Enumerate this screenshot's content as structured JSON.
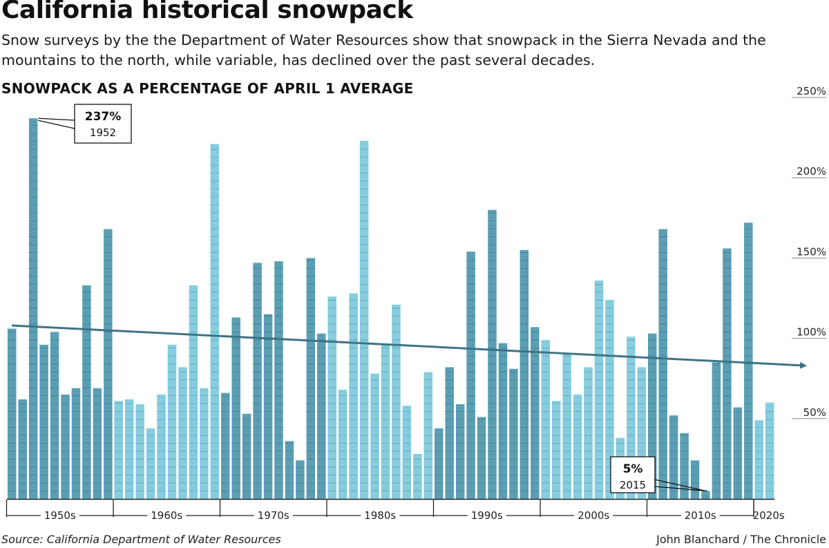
{
  "header": {
    "title": "California historical snowpack",
    "subtitle": "Snow surveys by the the Department of Water Resources show that snowpack in the Sierra Nevada and the mountains to the north, while variable, has declined over the past several decades.",
    "chart_heading": "SNOWPACK AS A PERCENTAGE OF APRIL 1 AVERAGE"
  },
  "footer": {
    "source": "Source: California Department of Water Resources",
    "credit": "John Blanchard / The Chronicle"
  },
  "colors": {
    "dark_bar": "#5b9fb5",
    "light_bar": "#86cde0",
    "trend_line": "#3e7384",
    "axis": "#222222"
  },
  "chart_data": {
    "type": "bar",
    "title": "SNOWPACK AS A PERCENTAGE OF APRIL 1 AVERAGE",
    "xlabel": "",
    "ylabel": "",
    "ylim": [
      0,
      250
    ],
    "y_ticks": [
      50,
      100,
      150,
      200,
      250
    ],
    "y_tick_labels": [
      "50%",
      "100%",
      "150%",
      "200%",
      "250%"
    ],
    "years": [
      1950,
      1951,
      1952,
      1953,
      1954,
      1955,
      1956,
      1957,
      1958,
      1959,
      1960,
      1961,
      1962,
      1963,
      1964,
      1965,
      1966,
      1967,
      1968,
      1969,
      1970,
      1971,
      1972,
      1973,
      1974,
      1975,
      1976,
      1977,
      1978,
      1979,
      1980,
      1981,
      1982,
      1983,
      1984,
      1985,
      1986,
      1987,
      1988,
      1989,
      1990,
      1991,
      1992,
      1993,
      1994,
      1995,
      1996,
      1997,
      1998,
      1999,
      2000,
      2001,
      2002,
      2003,
      2004,
      2005,
      2006,
      2007,
      2008,
      2009,
      2010,
      2011,
      2012,
      2013,
      2014,
      2015,
      2016,
      2017,
      2018,
      2019,
      2020,
      2021
    ],
    "values": [
      106,
      62,
      237,
      96,
      104,
      65,
      69,
      133,
      69,
      168,
      61,
      62,
      59,
      44,
      65,
      96,
      82,
      133,
      69,
      221,
      66,
      113,
      53,
      147,
      115,
      148,
      36,
      24,
      150,
      103,
      126,
      68,
      128,
      223,
      78,
      96,
      121,
      58,
      28,
      79,
      44,
      82,
      59,
      154,
      51,
      180,
      97,
      81,
      155,
      107,
      99,
      61,
      91,
      65,
      82,
      136,
      124,
      38,
      101,
      82,
      103,
      168,
      52,
      41,
      24,
      5,
      85,
      156,
      57,
      172,
      49,
      60
    ],
    "decades": [
      "1950s",
      "1960s",
      "1970s",
      "1980s",
      "1990s",
      "2000s",
      "2010s",
      "2020s"
    ],
    "trend": {
      "start_year": 1950,
      "start_value": 108,
      "end_year": 2021,
      "end_value": 83
    },
    "annotations": [
      {
        "value_label": "237%",
        "year_label": "1952",
        "year": 1952,
        "value": 237
      },
      {
        "value_label": "5%",
        "year_label": "2015",
        "year": 2015,
        "value": 5
      }
    ]
  }
}
